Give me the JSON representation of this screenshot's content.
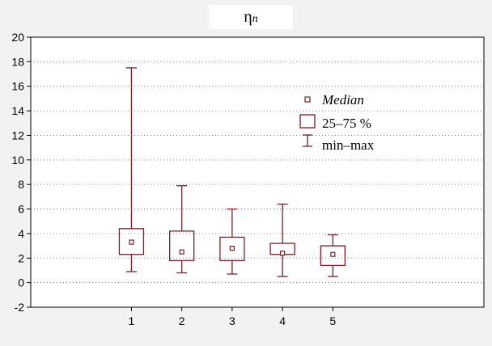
{
  "chart_data": {
    "type": "box",
    "title": "η",
    "title_subscript": "n",
    "xlabel": "",
    "ylabel": "",
    "categories": [
      "1",
      "2",
      "3",
      "4",
      "5"
    ],
    "boxes": [
      {
        "x": "1",
        "min": 0.9,
        "q1": 2.3,
        "median": 3.3,
        "q3": 4.4,
        "max": 17.5
      },
      {
        "x": "2",
        "min": 0.8,
        "q1": 1.8,
        "median": 2.5,
        "q3": 4.2,
        "max": 7.9
      },
      {
        "x": "3",
        "min": 0.7,
        "q1": 1.8,
        "median": 2.8,
        "q3": 3.7,
        "max": 6.0
      },
      {
        "x": "4",
        "min": 0.5,
        "q1": 2.3,
        "median": 2.4,
        "q3": 3.2,
        "max": 6.4
      },
      {
        "x": "5",
        "min": 0.5,
        "q1": 1.4,
        "median": 2.3,
        "q3": 3.0,
        "max": 3.9
      }
    ],
    "yticks": [
      -2,
      0,
      2,
      4,
      6,
      8,
      10,
      12,
      14,
      16,
      18,
      20
    ],
    "ylim": [
      -2,
      20
    ],
    "xlim": [
      -1,
      8
    ],
    "grid": true,
    "legend": {
      "position": "right",
      "entries": [
        "Median",
        "25–75 %",
        "min–max"
      ]
    },
    "colors": {
      "series": "#7a1f2b",
      "grid": "#8a8a8a",
      "plot_background": "#ffffff",
      "page_background": "#f2f2f2"
    }
  }
}
